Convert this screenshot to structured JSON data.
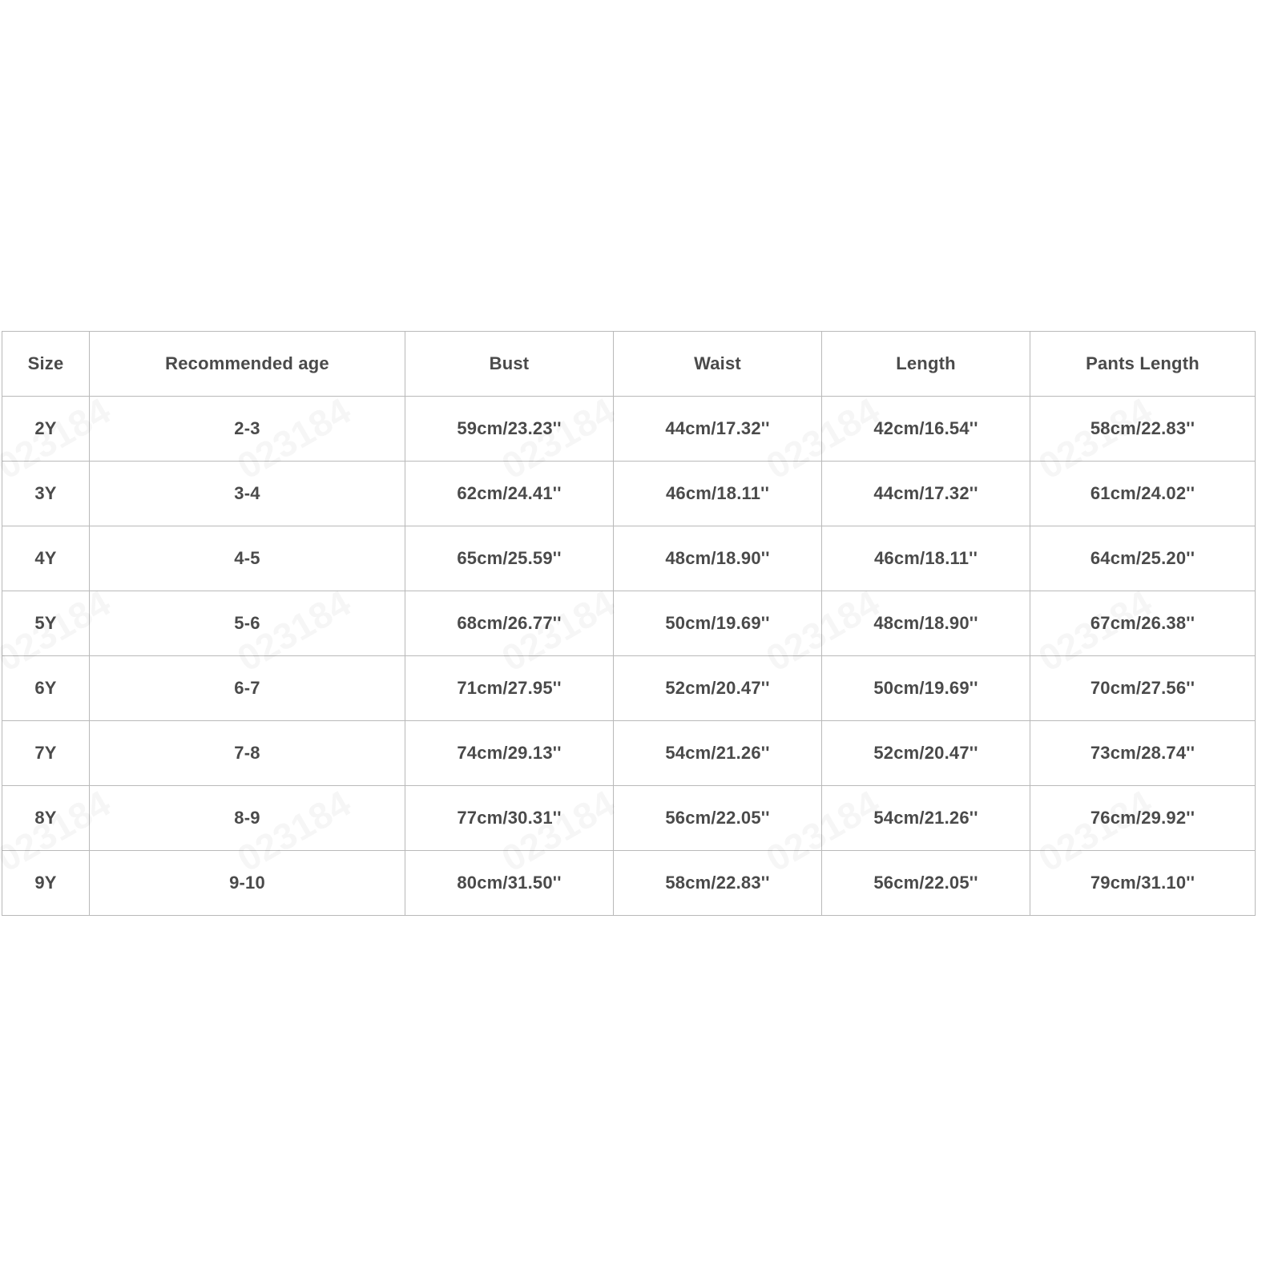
{
  "table": {
    "header": [
      "Size",
      "Recommended age",
      "Bust",
      "Waist",
      "Length",
      "Pants Length"
    ],
    "rows": [
      [
        "2Y",
        "2-3",
        "59cm/23.23''",
        "44cm/17.32''",
        "42cm/16.54''",
        "58cm/22.83''"
      ],
      [
        "3Y",
        "3-4",
        "62cm/24.41''",
        "46cm/18.11''",
        "44cm/17.32''",
        "61cm/24.02''"
      ],
      [
        "4Y",
        "4-5",
        "65cm/25.59''",
        "48cm/18.90''",
        "46cm/18.11''",
        "64cm/25.20''"
      ],
      [
        "5Y",
        "5-6",
        "68cm/26.77''",
        "50cm/19.69''",
        "48cm/18.90''",
        "67cm/26.38''"
      ],
      [
        "6Y",
        "6-7",
        "71cm/27.95''",
        "52cm/20.47''",
        "50cm/19.69''",
        "70cm/27.56''"
      ],
      [
        "7Y",
        "7-8",
        "74cm/29.13''",
        "54cm/21.26''",
        "52cm/20.47''",
        "73cm/28.74''"
      ],
      [
        "8Y",
        "8-9",
        "77cm/30.31''",
        "56cm/22.05''",
        "54cm/21.26''",
        "76cm/29.92''"
      ],
      [
        "9Y",
        "9-10",
        "80cm/31.50''",
        "58cm/22.83''",
        "56cm/22.05''",
        "79cm/31.10''"
      ]
    ]
  },
  "watermark": "023184"
}
